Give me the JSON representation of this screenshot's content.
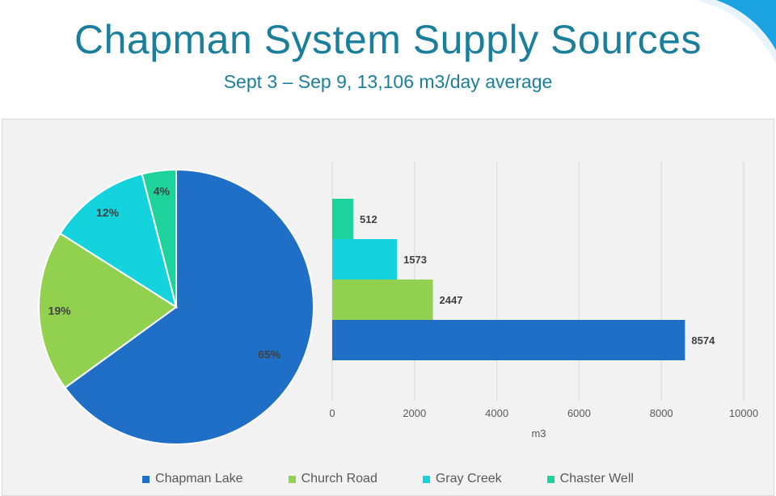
{
  "header": {
    "title": "Chapman System Supply Sources",
    "subtitle": "Sept 3 – Sep 9, 13,106 m3/day average"
  },
  "colors": {
    "title": "#1a7f9c",
    "chapman_lake": "#1f6fc6",
    "church_road": "#92d050",
    "gray_creek": "#14d3dd",
    "chaster_well": "#1ed39b",
    "panel_background": "#f2f2f2",
    "gridline": "#d9d9d9"
  },
  "legend": {
    "placement": "bottom",
    "items": [
      {
        "label": "Chapman Lake",
        "color": "#1f6fc6"
      },
      {
        "label": "Church Road",
        "color": "#92d050"
      },
      {
        "label": "Gray Creek",
        "color": "#14d3dd"
      },
      {
        "label": "Chaster Well",
        "color": "#1ed39b"
      }
    ]
  },
  "chart_data": [
    {
      "type": "pie",
      "categories": [
        "Chapman Lake",
        "Church Road",
        "Gray Creek",
        "Chaster Well"
      ],
      "values": [
        65,
        19,
        12,
        4
      ],
      "labels": [
        "65%",
        "19%",
        "12%",
        "4%"
      ]
    },
    {
      "type": "bar",
      "orientation": "horizontal",
      "categories": [
        "Chapman Lake",
        "Church Road",
        "Gray Creek",
        "Chaster Well"
      ],
      "values": [
        8574,
        2447,
        1573,
        512
      ],
      "labels": [
        "8574",
        "2447",
        "1573",
        "512"
      ],
      "xlabel": "m3",
      "xlim": [
        0,
        10000
      ],
      "xticks": [
        "0",
        "2000",
        "4000",
        "6000",
        "8000",
        "10000"
      ],
      "grid": true
    }
  ]
}
